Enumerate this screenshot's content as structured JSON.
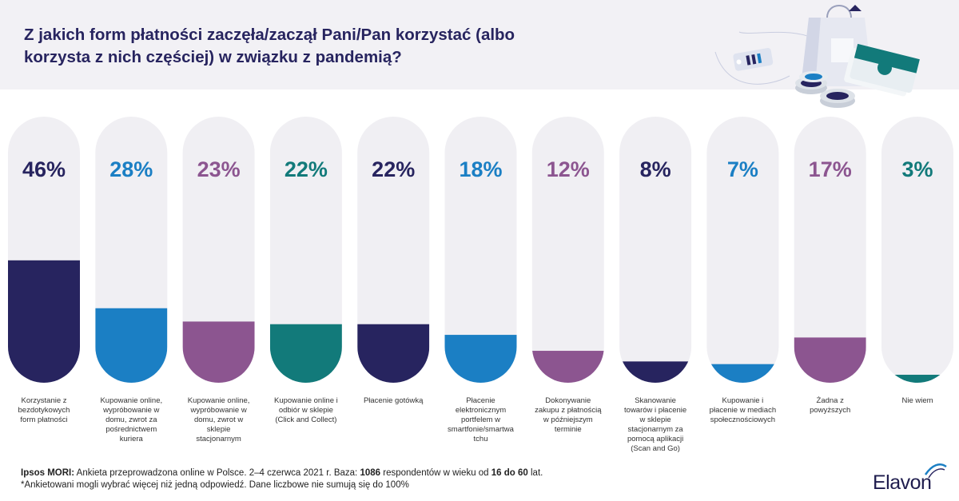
{
  "header": {
    "title_line1": "Z jakich form płatności zaczęła/zaczął Pani/Pan korzystać (albo",
    "title_line2": "korzysta z nich częściej) w związku z pandemią?"
  },
  "chart_data": {
    "type": "bar",
    "ylim": [
      0,
      100
    ],
    "unit": "%",
    "categories": [
      "Korzystanie z bezdotykowych form płatności",
      "Kupowanie online, wypróbowanie w domu, zwrot za pośrednictwem kuriera",
      "Kupowanie online, wypróbowanie w domu, zwrot w sklepie stacjonarnym",
      "Kupowanie online i odbiór w sklepie (Click and Collect)",
      "Płacenie gotówką",
      "Płacenie elektronicznym portfelem w smartfonie/smartwatchu",
      "Dokonywanie zakupu z płatnością w późniejszym terminie",
      "Skanowanie towarów i płacenie w sklepie stacjonarnym za pomocą aplikacji (Scan and Go)",
      "Kupowanie i płacenie w mediach społecznościowych",
      "Żadna z powyższych",
      "Nie wiem"
    ],
    "category_lines": [
      [
        "Korzystanie z",
        "bezdotykowych",
        "form płatności"
      ],
      [
        "Kupowanie online,",
        "wypróbowanie w",
        "domu, zwrot za",
        "pośrednictwem",
        "kuriera"
      ],
      [
        "Kupowanie online,",
        "wypróbowanie w",
        "domu, zwrot w",
        "sklepie",
        "stacjonarnym"
      ],
      [
        "Kupowanie online i",
        "odbiór w sklepie",
        "(Click and Collect)"
      ],
      [
        "Płacenie gotówką"
      ],
      [
        "Płacenie",
        "elektronicznym",
        "portfelem w",
        "smartfonie/smartwa",
        "tchu"
      ],
      [
        "Dokonywanie",
        "zakupu z płatnością",
        "w późniejszym",
        "terminie"
      ],
      [
        "Skanowanie",
        "towarów i płacenie",
        "w sklepie",
        "stacjonarnym za",
        "pomocą aplikacji",
        "(Scan and Go)"
      ],
      [
        "Kupowanie i",
        "płacenie w mediach",
        "społecznościowych"
      ],
      [
        "Żadna z",
        "powyższych"
      ],
      [
        "Nie wiem"
      ]
    ],
    "values": [
      46,
      28,
      23,
      22,
      22,
      18,
      12,
      8,
      7,
      17,
      3
    ],
    "value_labels": [
      "46%",
      "28%",
      "23%",
      "22%",
      "22%",
      "18%",
      "12%",
      "8%",
      "7%",
      "17%",
      "3%"
    ],
    "colors": [
      "#27245f",
      "#1b7fc4",
      "#8c5590",
      "#127a7a",
      "#27245f",
      "#1b7fc4",
      "#8c5590",
      "#27245f",
      "#1b7fc4",
      "#8c5590",
      "#127a7a"
    ],
    "track_color": "#f0eff3"
  },
  "footer": {
    "source_label": "Ipsos MORI:",
    "source_text1": " Ankieta przeprowadzona online w Polsce. 2–4 czerwca 2021 r. Baza: ",
    "base_count": "1086",
    "source_text2": " respondentów w wieku od ",
    "age_range": "16 do 60",
    "source_text3": " lat.",
    "note": "*Ankietowani mogli wybrać więcej niż jedną odpowiedź. Dane liczbowe nie sumują się do 100%"
  },
  "brand": {
    "name": "Elavon",
    "color": "#1f1d4e"
  }
}
